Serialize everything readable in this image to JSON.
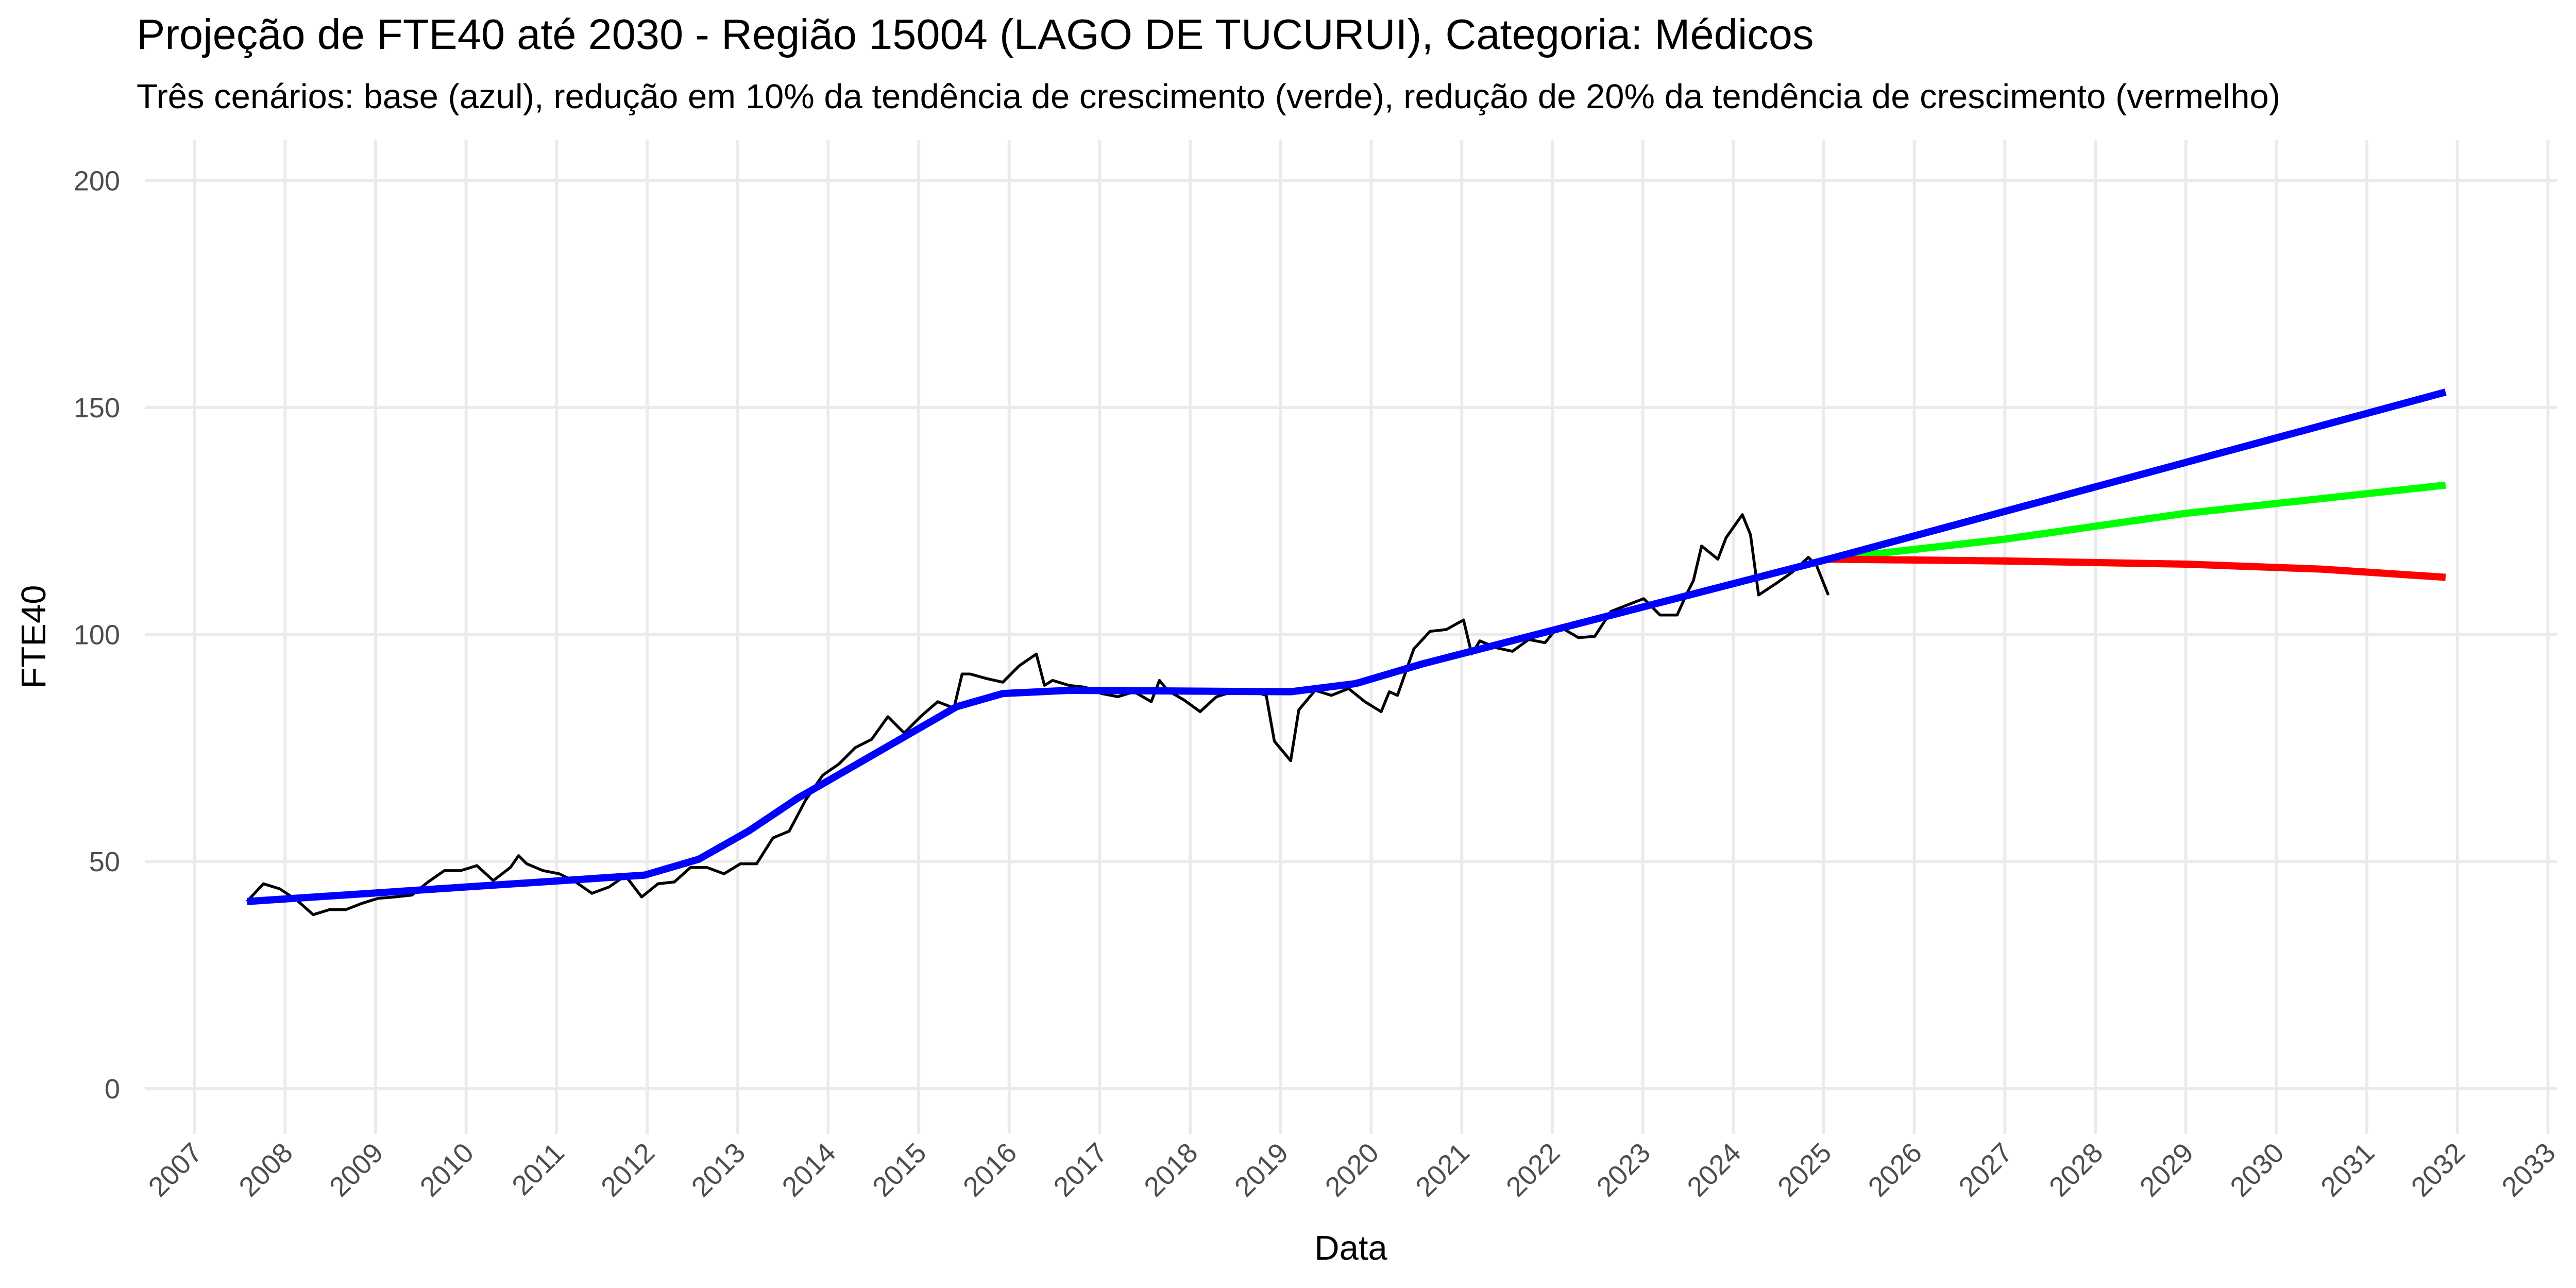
{
  "chart_data": {
    "type": "line",
    "title": "Projeção de FTE40 até 2030 - Região 15004 (LAGO DE TUCURUI), Categoria: Médicos",
    "subtitle": "Três cenários: base (azul), redução em 10% da tendência de crescimento (verde), redução de 20% da tendência de crescimento (vermelho)",
    "x_label": "Data",
    "y_label": "FTE40",
    "xlim": [
      2006.45,
      2033.1
    ],
    "ylim": [
      -10,
      209
    ],
    "xticks": [
      2007,
      2008,
      2009,
      2010,
      2011,
      2012,
      2013,
      2014,
      2015,
      2016,
      2017,
      2018,
      2019,
      2020,
      2021,
      2022,
      2023,
      2024,
      2025,
      2026,
      2027,
      2028,
      2029,
      2030,
      2031,
      2032,
      2033
    ],
    "yticks": [
      0,
      50,
      100,
      150,
      200
    ],
    "grid": true,
    "series": [
      {
        "color": "#000000",
        "x": [
          2007.58,
          2007.76,
          2007.94,
          2008.13,
          2008.31,
          2008.49,
          2008.67,
          2008.85,
          2009.03,
          2009.21,
          2009.4,
          2009.58,
          2009.76,
          2009.94,
          2010.12,
          2010.3,
          2010.49,
          2010.58,
          2010.67,
          2010.85,
          2011.03,
          2011.21,
          2011.39,
          2011.58,
          2011.76,
          2011.94,
          2012.12,
          2012.3,
          2012.48,
          2012.66,
          2012.85,
          2013.03,
          2013.21,
          2013.39,
          2013.57,
          2013.75,
          2013.94,
          2014.12,
          2014.3,
          2014.48,
          2014.66,
          2014.84,
          2015.02,
          2015.21,
          2015.39,
          2015.48,
          2015.57,
          2015.75,
          2015.93,
          2016.11,
          2016.3,
          2016.39,
          2016.48,
          2016.66,
          2016.84,
          2017.02,
          2017.2,
          2017.38,
          2017.57,
          2017.66,
          2017.75,
          2017.93,
          2018.11,
          2018.29,
          2018.47,
          2018.66,
          2018.84,
          2018.93,
          2019.11,
          2019.2,
          2019.38,
          2019.56,
          2019.75,
          2019.93,
          2020.11,
          2020.2,
          2020.29,
          2020.47,
          2020.65,
          2020.83,
          2021.02,
          2021.11,
          2021.2,
          2021.38,
          2021.56,
          2021.74,
          2021.92,
          2022.01,
          2022.11,
          2022.29,
          2022.47,
          2022.65,
          2022.83,
          2023.01,
          2023.19,
          2023.38,
          2023.47,
          2023.56,
          2023.65,
          2023.83,
          2023.92,
          2024.1,
          2024.19,
          2024.28,
          2024.47,
          2024.65,
          2024.83,
          2024.92,
          2025.05
        ],
        "values": [
          41.2,
          45.1,
          44.0,
          41.5,
          38.3,
          39.4,
          39.4,
          40.8,
          41.9,
          42.2,
          42.6,
          45.5,
          48.0,
          48.0,
          49.1,
          45.8,
          48.7,
          51.3,
          49.5,
          48.0,
          47.3,
          45.5,
          43.0,
          44.4,
          46.9,
          42.2,
          45.1,
          45.5,
          48.7,
          48.7,
          47.3,
          49.5,
          49.5,
          55.2,
          56.7,
          63.5,
          69.0,
          71.5,
          75.1,
          76.9,
          81.9,
          78.3,
          81.9,
          85.2,
          83.8,
          91.3,
          91.3,
          90.3,
          89.5,
          93.1,
          95.7,
          88.8,
          89.9,
          88.8,
          88.4,
          87.0,
          86.3,
          87.4,
          85.2,
          89.9,
          87.7,
          85.6,
          83.0,
          86.3,
          87.4,
          87.7,
          86.6,
          76.5,
          72.2,
          83.4,
          87.7,
          86.6,
          88.1,
          85.2,
          83.0,
          87.4,
          86.6,
          96.8,
          100.7,
          101.1,
          103.2,
          95.7,
          98.6,
          97.1,
          96.3,
          98.9,
          98.2,
          100.4,
          101.4,
          99.3,
          99.6,
          105.1,
          106.5,
          107.9,
          104.3,
          104.3,
          108.3,
          111.9,
          119.5,
          116.6,
          121.3,
          126.4,
          122.0,
          108.7,
          111.2,
          113.7,
          117.0,
          115.2,
          108.7
        ]
      },
      {
        "color": "#00ff00",
        "x": [
          2025.05,
          2027.0,
          2029.0,
          2031.87
        ],
        "values": [
          116.6,
          121.0,
          126.7,
          132.9
        ]
      },
      {
        "color": "#ff0000",
        "x": [
          2025.05,
          2027.0,
          2029.0,
          2030.5,
          2031.87
        ],
        "values": [
          116.6,
          116.2,
          115.5,
          114.4,
          112.6
        ]
      },
      {
        "color": "#0000ff",
        "x": [
          2007.58,
          2011.97,
          2012.57,
          2013.12,
          2013.66,
          2015.42,
          2015.93,
          2016.66,
          2019.11,
          2019.83,
          2020.56,
          2025.05,
          2031.87
        ],
        "values": [
          41.2,
          47.0,
          50.5,
          56.7,
          63.9,
          84.1,
          87.0,
          87.7,
          87.4,
          89.2,
          93.5,
          116.6,
          153.4
        ]
      }
    ]
  }
}
